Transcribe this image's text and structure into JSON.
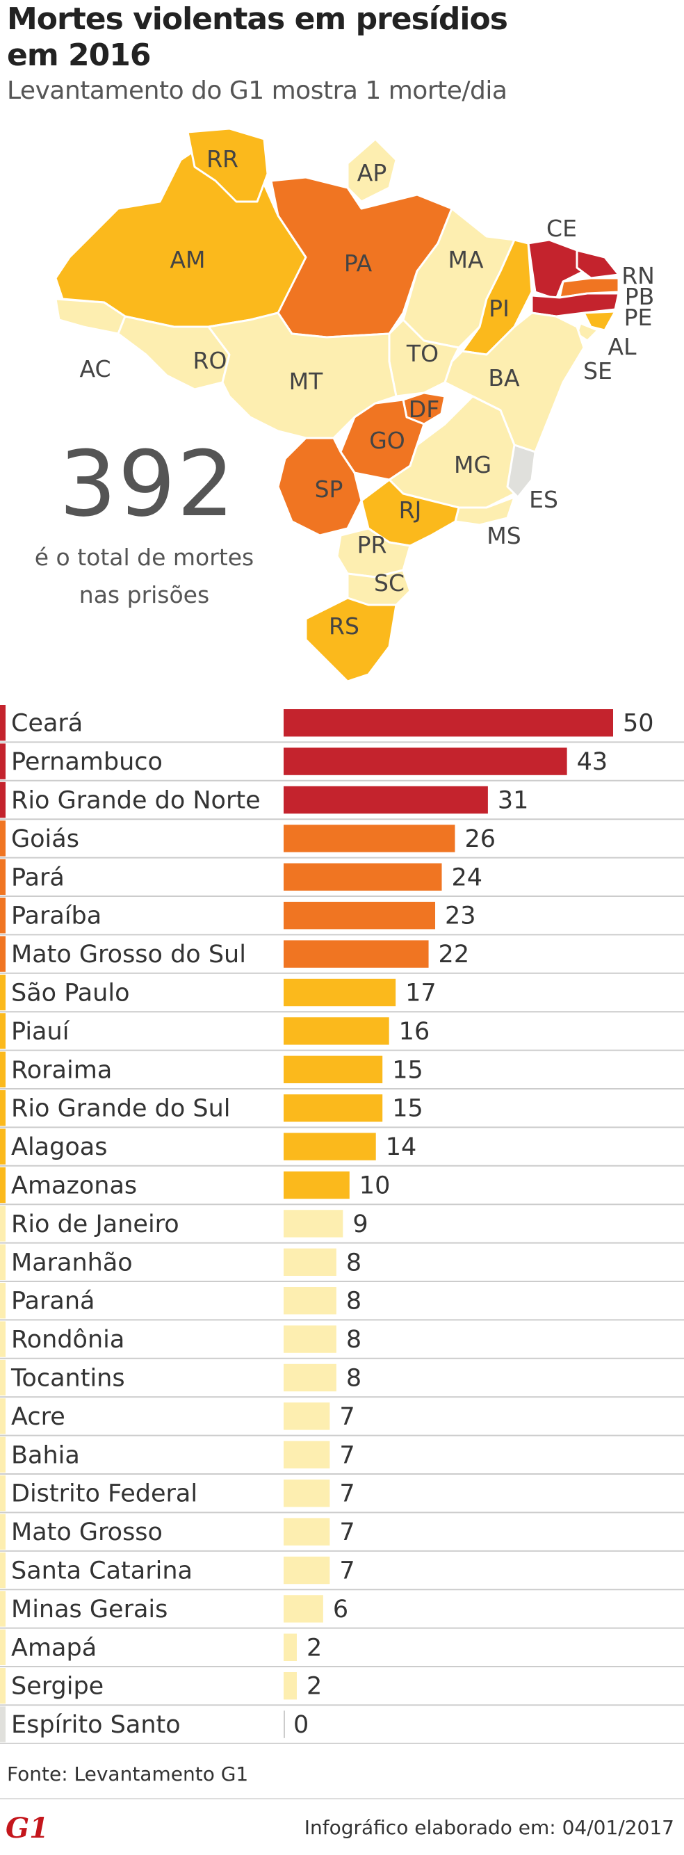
{
  "header": {
    "title": "Mortes violentas em presídios em 2016",
    "subtitle": "Levantamento do G1 mostra 1 morte/dia"
  },
  "map": {
    "total_number": "392",
    "total_text_line1": "é o total de mortes",
    "total_text_line2": "nas prisões",
    "colors": {
      "darkest": "#c4232d",
      "dark": "#f07522",
      "medium": "#fbb91c",
      "light": "#fdeeb0",
      "none": "#e0e0dc"
    },
    "labels": [
      "RR",
      "AP",
      "AM",
      "PA",
      "MA",
      "CE",
      "RN",
      "PB",
      "PE",
      "AL",
      "SE",
      "PI",
      "AC",
      "RO",
      "MT",
      "TO",
      "BA",
      "DF",
      "GO",
      "MG",
      "ES",
      "MS",
      "SP",
      "RJ",
      "PR",
      "SC",
      "RS"
    ]
  },
  "chart_data": {
    "type": "bar",
    "orientation": "horizontal",
    "title": "Mortes violentas em presídios em 2016",
    "xlim": [
      0,
      50
    ],
    "categories": [
      "Ceará",
      "Pernambuco",
      "Rio Grande do Norte",
      "Goiás",
      "Pará",
      "Paraíba",
      "Mato Grosso do Sul",
      "São Paulo",
      "Piauí",
      "Roraima",
      "Rio Grande do Sul",
      "Alagoas",
      "Amazonas",
      "Rio de Janeiro",
      "Maranhão",
      "Paraná",
      "Rondônia",
      "Tocantins",
      "Acre",
      "Bahia",
      "Distrito Federal",
      "Mato Grosso",
      "Santa Catarina",
      "Minas Gerais",
      "Amapá",
      "Sergipe",
      "Espírito Santo"
    ],
    "values": [
      50,
      43,
      31,
      26,
      24,
      23,
      22,
      17,
      16,
      15,
      15,
      14,
      10,
      9,
      8,
      8,
      8,
      8,
      7,
      7,
      7,
      7,
      7,
      6,
      2,
      2,
      0
    ],
    "color_classes": [
      "darkest",
      "darkest",
      "darkest",
      "dark",
      "dark",
      "dark",
      "dark",
      "medium",
      "medium",
      "medium",
      "medium",
      "medium",
      "medium",
      "light",
      "light",
      "light",
      "light",
      "light",
      "light",
      "light",
      "light",
      "light",
      "light",
      "light",
      "light",
      "light",
      "none"
    ]
  },
  "footer": {
    "source": "Fonte: Levantamento G1",
    "logo": "G1",
    "date_text": "Infográfico elaborado em: 04/01/2017"
  }
}
